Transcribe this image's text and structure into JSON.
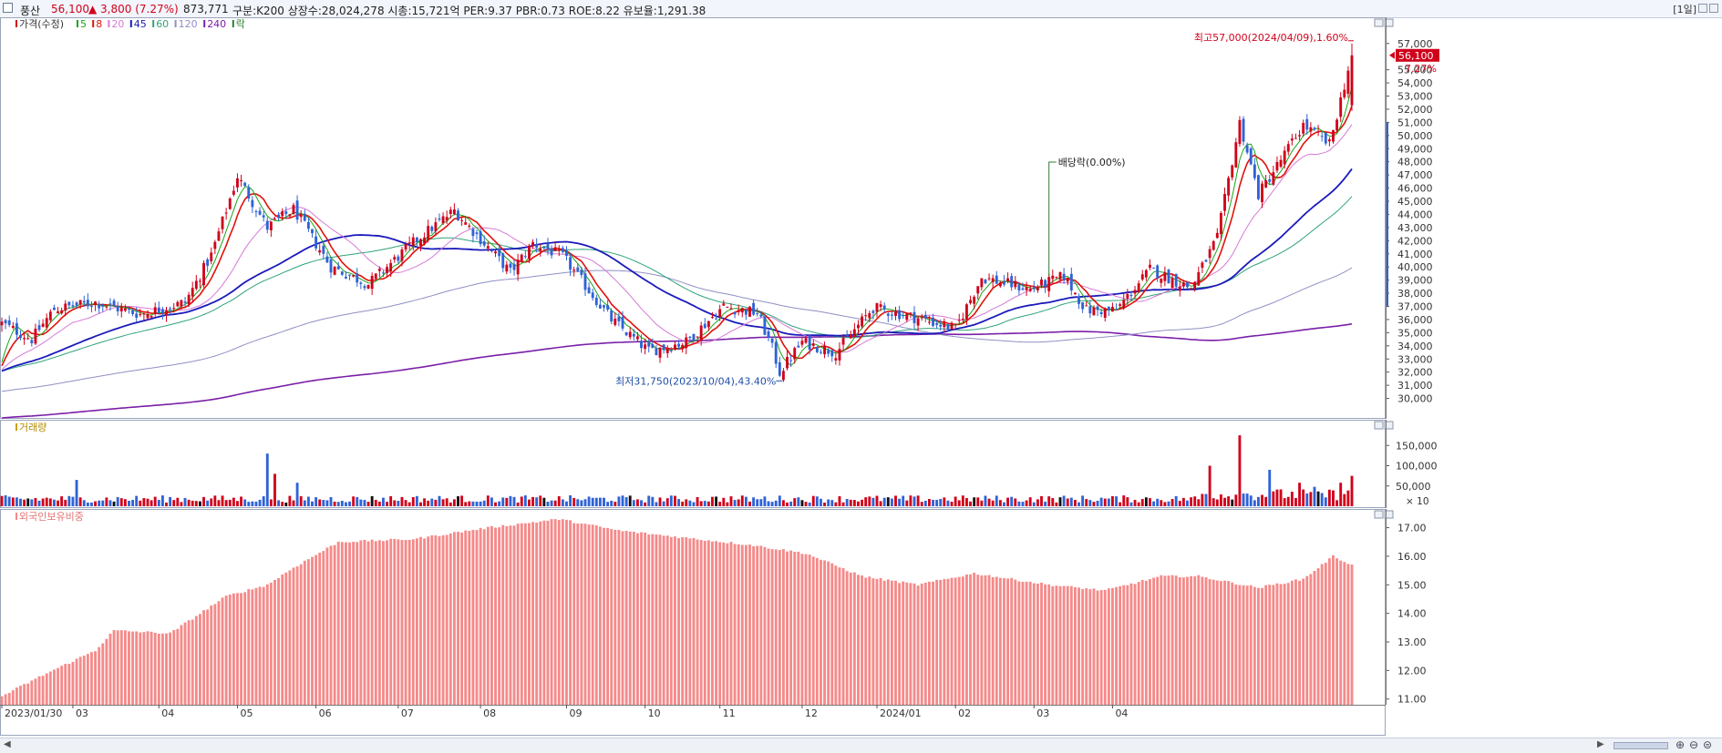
{
  "header": {
    "name": "풍산",
    "price": "56,100",
    "change": "▲ 3,800 (7.27%)",
    "volume": "873,771",
    "info": "구분:K200  상장수:28,024,278  시총:15,721억  PER:9.37  PBR:0.73  ROE:8.22  유보율:1,291.38",
    "period": "[1일]"
  },
  "colors": {
    "up": "#d0021b",
    "down": "#2f63d6",
    "ma5": "#1aa51a",
    "ma8": "#e0120c",
    "ma20": "#d77ad6",
    "ma45": "#1a1abb",
    "ma60": "#2fa37a",
    "ma120": "#8f8fc6",
    "ma240": "#7a1fa8",
    "foreign": "#f58a8a",
    "marker": "#2e7d32"
  },
  "chart_data": [
    {
      "type": "candlestick",
      "title": "",
      "legend": [
        "가격(수정)",
        "5",
        "8",
        "20",
        "45",
        "60",
        "120",
        "240",
        "락"
      ],
      "ylim": [
        29000,
        58300
      ],
      "yticks": [
        30000,
        31000,
        32000,
        33000,
        34000,
        35000,
        36000,
        37000,
        38000,
        39000,
        40000,
        41000,
        42000,
        43000,
        44000,
        45000,
        46000,
        47000,
        48000,
        49000,
        50000,
        51000,
        52000,
        53000,
        54000,
        55000,
        57000
      ],
      "x_labels": [
        "2023/01/30",
        "03",
        "04",
        "05",
        "06",
        "07",
        "08",
        "09",
        "10",
        "11",
        "12",
        "2024/01",
        "02",
        "03",
        "04"
      ],
      "anchors": [
        [
          0,
          35700
        ],
        [
          8,
          34500
        ],
        [
          14,
          36800
        ],
        [
          25,
          37300
        ],
        [
          37,
          36400
        ],
        [
          49,
          37300
        ],
        [
          56,
          40900
        ],
        [
          63,
          46900
        ],
        [
          71,
          43000
        ],
        [
          78,
          44400
        ],
        [
          88,
          40000
        ],
        [
          98,
          38700
        ],
        [
          111,
          42100
        ],
        [
          121,
          44300
        ],
        [
          130,
          41500
        ],
        [
          136,
          39600
        ],
        [
          142,
          41800
        ],
        [
          150,
          40800
        ],
        [
          163,
          36000
        ],
        [
          173,
          33600
        ],
        [
          183,
          34300
        ],
        [
          193,
          37000
        ],
        [
          202,
          36500
        ],
        [
          206,
          33800
        ],
        [
          208,
          32000
        ],
        [
          214,
          34300
        ],
        [
          223,
          33500
        ],
        [
          233,
          36900
        ],
        [
          245,
          36100
        ],
        [
          255,
          35300
        ],
        [
          262,
          39200
        ],
        [
          275,
          38300
        ],
        [
          284,
          39300
        ],
        [
          290,
          36700
        ],
        [
          298,
          36700
        ],
        [
          307,
          39800
        ],
        [
          318,
          38400
        ],
        [
          325,
          42200
        ],
        [
          331,
          51000
        ],
        [
          336,
          45500
        ],
        [
          348,
          50800
        ],
        [
          355,
          49300
        ],
        [
          361,
          56100
        ]
      ],
      "last_close": 56100,
      "last_change": "7.27%",
      "high_label": "최고57,000(2024/04/09),1.60%",
      "low_label": "최저31,750(2023/10/04),43.40%",
      "event_label": "배당락(0.00%)",
      "moving_averages": [
        "5",
        "8",
        "20",
        "45",
        "60",
        "120",
        "240"
      ]
    },
    {
      "type": "bar",
      "title": "거래량",
      "yticks": [
        50000,
        100000,
        150000
      ],
      "multiplier": "× 10",
      "typical_value": 18000,
      "peak_values": [
        [
          20,
          65000
        ],
        [
          71,
          130000
        ],
        [
          73,
          80000
        ],
        [
          79,
          58000
        ],
        [
          331,
          175000
        ],
        [
          323,
          100000
        ],
        [
          339,
          90000
        ],
        [
          347,
          58000
        ],
        [
          351,
          48000
        ],
        [
          358,
          58000
        ],
        [
          361,
          75000
        ]
      ]
    },
    {
      "type": "bar",
      "title": "외국인보유비중",
      "ylim": [
        10.8,
        17.4
      ],
      "yticks": [
        11.0,
        12.0,
        13.0,
        14.0,
        15.0,
        16.0,
        17.0
      ],
      "anchors": [
        [
          0,
          11.1
        ],
        [
          12,
          11.9
        ],
        [
          25,
          12.7
        ],
        [
          30,
          13.4
        ],
        [
          45,
          13.3
        ],
        [
          60,
          14.6
        ],
        [
          71,
          15.0
        ],
        [
          78,
          15.6
        ],
        [
          90,
          16.5
        ],
        [
          110,
          16.6
        ],
        [
          130,
          17.0
        ],
        [
          149,
          17.3
        ],
        [
          165,
          16.9
        ],
        [
          200,
          16.4
        ],
        [
          215,
          16.1
        ],
        [
          230,
          15.3
        ],
        [
          245,
          15.0
        ],
        [
          260,
          15.4
        ],
        [
          280,
          15.0
        ],
        [
          295,
          14.8
        ],
        [
          310,
          15.3
        ],
        [
          320,
          15.3
        ],
        [
          336,
          14.9
        ],
        [
          348,
          15.2
        ],
        [
          356,
          16.0
        ],
        [
          361,
          15.7
        ]
      ]
    }
  ]
}
